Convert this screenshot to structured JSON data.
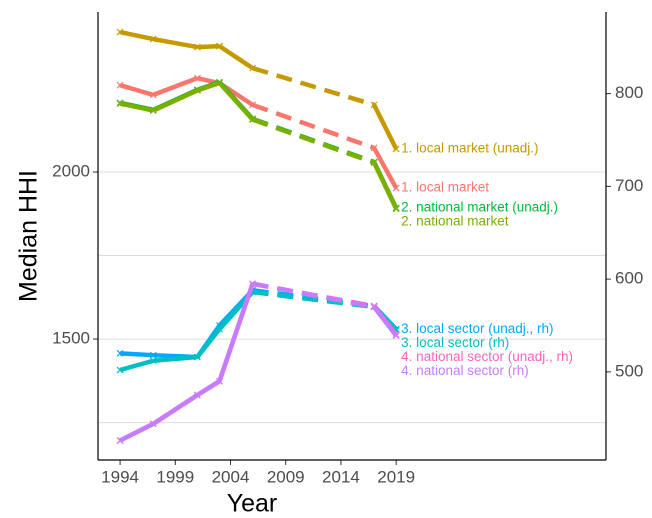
{
  "chart_data": {
    "type": "line",
    "x_label": "Year",
    "y_label": "Median HHI",
    "x": [
      1994,
      1997,
      2001,
      2003,
      2006,
      2017,
      2019
    ],
    "xlim": [
      1992,
      2038
    ],
    "xticks": [
      1994,
      1999,
      2004,
      2009,
      2014,
      2019
    ],
    "ylim": [
      1138,
      2479
    ],
    "yticks": [
      1500,
      2000
    ],
    "y_minor_grid": [
      1250,
      1750
    ],
    "y2lim": [
      405,
      888
    ],
    "y2ticks": [
      500,
      600,
      700,
      800
    ],
    "dashed_x_range": [
      2006,
      2017
    ],
    "marker": "x",
    "series": [
      {
        "name": "1. local market (unadj.)",
        "color": "#C49A00",
        "values": [
          2419,
          2398,
          2374,
          2377,
          2311,
          2201,
          2069
        ]
      },
      {
        "name": "1. local market",
        "color": "#F8766D",
        "values": [
          2260,
          2231,
          2281,
          2266,
          2201,
          2072,
          1952
        ]
      },
      {
        "name": "2. national market (unadj.)",
        "color": "#00BA38",
        "values": [
          2207,
          2186,
          2246,
          2269,
          2159,
          2030,
          1892
        ]
      },
      {
        "name": "2. national market",
        "color": "#7CAE00",
        "values": [
          2205,
          2184,
          2244,
          2267,
          2157,
          2028,
          1890
        ]
      },
      {
        "name": "3. local sector (unadj., rh)",
        "color": "#00A9FF",
        "axis": "y2",
        "values": [
          520,
          518,
          516,
          550,
          588,
          571,
          546
        ]
      },
      {
        "name": "3. local sector (rh)",
        "color": "#00BFC4",
        "axis": "y2",
        "values": [
          502,
          512,
          516,
          546,
          586,
          570,
          545
        ]
      },
      {
        "name": "4. national sector (unadj., rh)",
        "color": "#FF61C3",
        "axis": "y2",
        "values": [
          426,
          444,
          475,
          490,
          595,
          571,
          540
        ]
      },
      {
        "name": "4. national sector (rh)",
        "color": "#C77CFF",
        "axis": "y2",
        "values": [
          426,
          444,
          475,
          490,
          595,
          570,
          539
        ]
      }
    ]
  }
}
